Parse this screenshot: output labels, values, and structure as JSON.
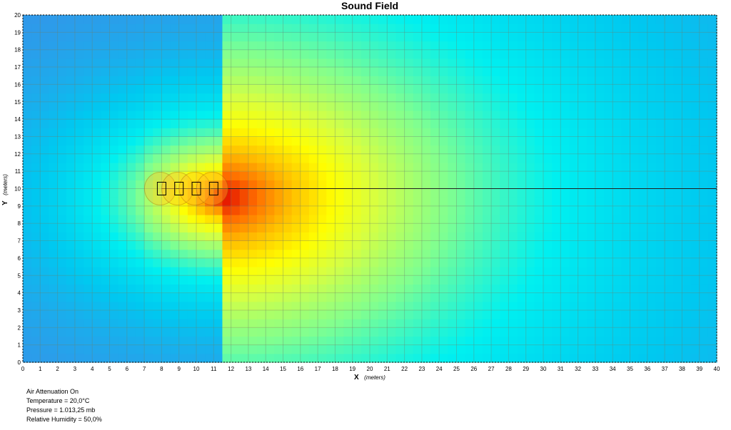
{
  "chart_data": {
    "type": "heatmap",
    "title": "Sound Field",
    "xlabel": "X",
    "xlabel_unit": "(meters)",
    "ylabel": "Y",
    "ylabel_unit": "(meters)",
    "xlim": [
      0,
      40
    ],
    "ylim": [
      0,
      20
    ],
    "x_ticks": [
      0,
      1,
      2,
      3,
      4,
      5,
      6,
      7,
      8,
      9,
      10,
      11,
      12,
      13,
      14,
      15,
      16,
      17,
      18,
      19,
      20,
      21,
      22,
      23,
      24,
      25,
      26,
      27,
      28,
      29,
      30,
      31,
      32,
      33,
      34,
      35,
      36,
      37,
      38,
      39,
      40
    ],
    "y_ticks": [
      0,
      1,
      2,
      3,
      4,
      5,
      6,
      7,
      8,
      9,
      10,
      11,
      12,
      13,
      14,
      15,
      16,
      17,
      18,
      19,
      20
    ],
    "grid": true,
    "sources": [
      {
        "x": 8,
        "y": 10
      },
      {
        "x": 9,
        "y": 10
      },
      {
        "x": 10,
        "y": 10
      },
      {
        "x": 11,
        "y": 10
      }
    ],
    "axis_line": {
      "y": 10,
      "x_start": 8,
      "x_end": 40
    },
    "hotspot": {
      "x": 11.5,
      "y": 9.5
    },
    "colors": {
      "hot": "#e00000",
      "warm": "#ff8000",
      "mid": "#ffff00",
      "cool": "#80ff80",
      "cold": "#00e0ff",
      "coldest": "#3a8ee8"
    }
  },
  "info": {
    "line1": "Air Attenuation On",
    "line2": "Temperature = 20,0°C",
    "line3": "Pressure = 1.013,25  mb",
    "line4": "Relative Humidity = 50,0%"
  }
}
